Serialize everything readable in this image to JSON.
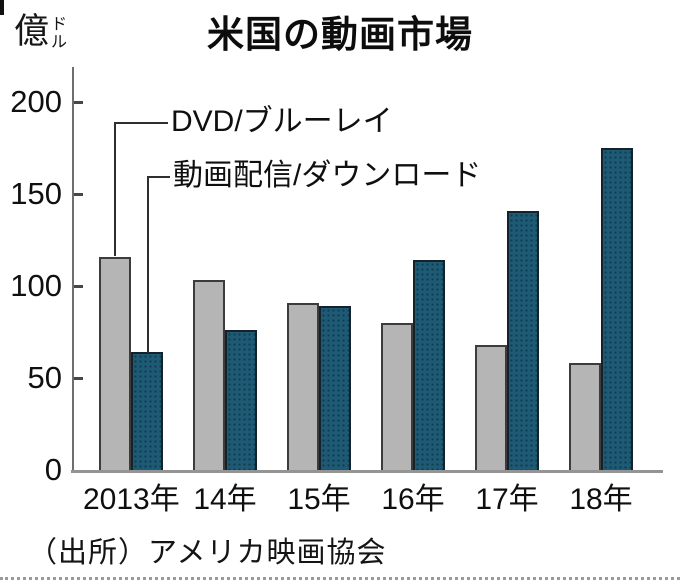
{
  "title": "米国の動画市場",
  "y_unit": {
    "kanji": "億",
    "small_top": "ド",
    "small_bottom": "ル"
  },
  "source": "（出所）アメリカ映画協会",
  "chart_data": {
    "type": "bar",
    "title": "米国の動画市場",
    "ylabel": "億ドル",
    "xlabel": "",
    "ylim": [
      0,
      200
    ],
    "yticks": [
      0,
      50,
      100,
      150,
      200
    ],
    "grid": false,
    "legend_position": "callout-lines-top-left",
    "categories": [
      "2013年",
      "14年",
      "15年",
      "16年",
      "17年",
      "18年"
    ],
    "series": [
      {
        "name": "DVD/ブルーレイ",
        "color": "#b5b5b5",
        "values": [
          116,
          103,
          91,
          80,
          68,
          58
        ]
      },
      {
        "name": "動画配信/ダウンロード",
        "color": "#1e5a73",
        "values": [
          64,
          76,
          89,
          114,
          141,
          175
        ]
      }
    ]
  },
  "colors": {
    "dvd_bar": "#b5b5b5",
    "streaming_bar": "#1e5a73",
    "axis": "#6e6e6e",
    "text": "#111111"
  }
}
